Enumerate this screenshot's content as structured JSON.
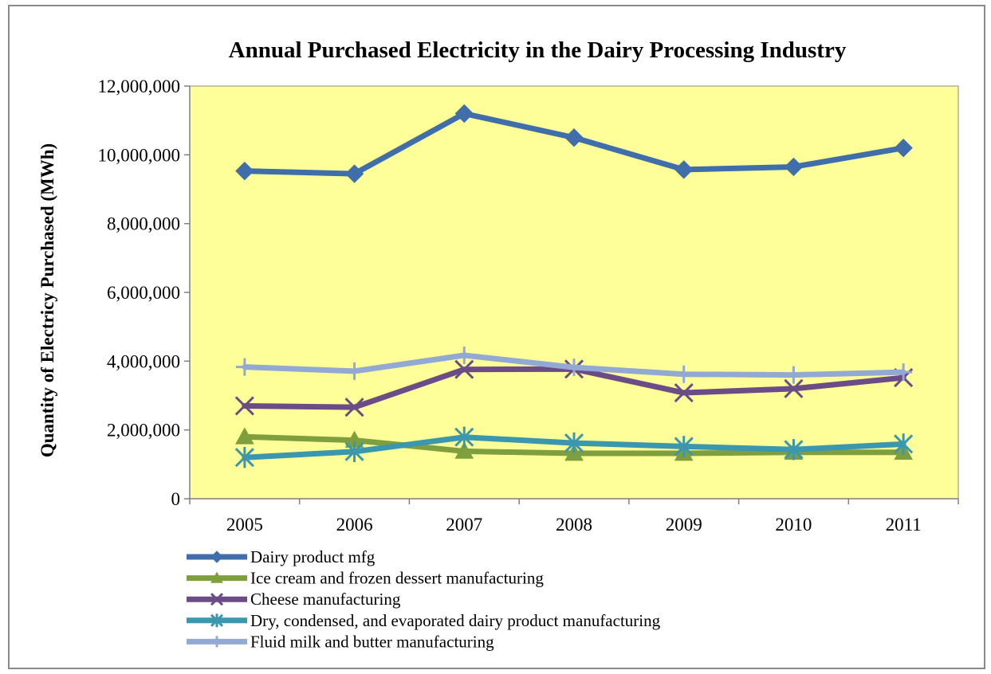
{
  "chart_data": {
    "type": "line",
    "title": "Annual Purchased Electricity  in the Dairy Processing Industry",
    "ylabel": "Quantity of Electricy Purchased (MWh)",
    "xlabel": "",
    "x": [
      "2005",
      "2006",
      "2007",
      "2008",
      "2009",
      "2010",
      "2011"
    ],
    "ylim": [
      0,
      12000000
    ],
    "yticks": [
      0,
      2000000,
      4000000,
      6000000,
      8000000,
      10000000,
      12000000
    ],
    "ytick_labels": [
      "0",
      "2,000,000",
      "4,000,000",
      "6,000,000",
      "8,000,000",
      "10,000,000",
      "12,000,000"
    ],
    "grid": false,
    "plot_background": "#ffff99",
    "legend_position": "bottom",
    "series": [
      {
        "name": "Dairy product mfg",
        "color": "#3f6eaa",
        "marker": "diamond",
        "values": [
          9530000,
          9450000,
          11200000,
          10500000,
          9570000,
          9650000,
          10200000
        ]
      },
      {
        "name": "Ice cream and frozen dessert manufacturing",
        "color": "#7f9f3f",
        "marker": "triangle",
        "values": [
          1800000,
          1700000,
          1380000,
          1320000,
          1320000,
          1350000,
          1350000
        ]
      },
      {
        "name": "Cheese manufacturing",
        "color": "#6b4c86",
        "marker": "x",
        "values": [
          2700000,
          2660000,
          3760000,
          3770000,
          3080000,
          3200000,
          3520000
        ]
      },
      {
        "name": "Dry, condensed, and evaporated dairy product manufacturing",
        "color": "#3a97ae",
        "marker": "asterisk",
        "values": [
          1200000,
          1370000,
          1790000,
          1620000,
          1520000,
          1430000,
          1590000
        ]
      },
      {
        "name": "Fluid milk and butter manufacturing",
        "color": "#92a9d4",
        "marker": "plus",
        "values": [
          3830000,
          3710000,
          4170000,
          3820000,
          3620000,
          3600000,
          3680000
        ]
      }
    ]
  }
}
